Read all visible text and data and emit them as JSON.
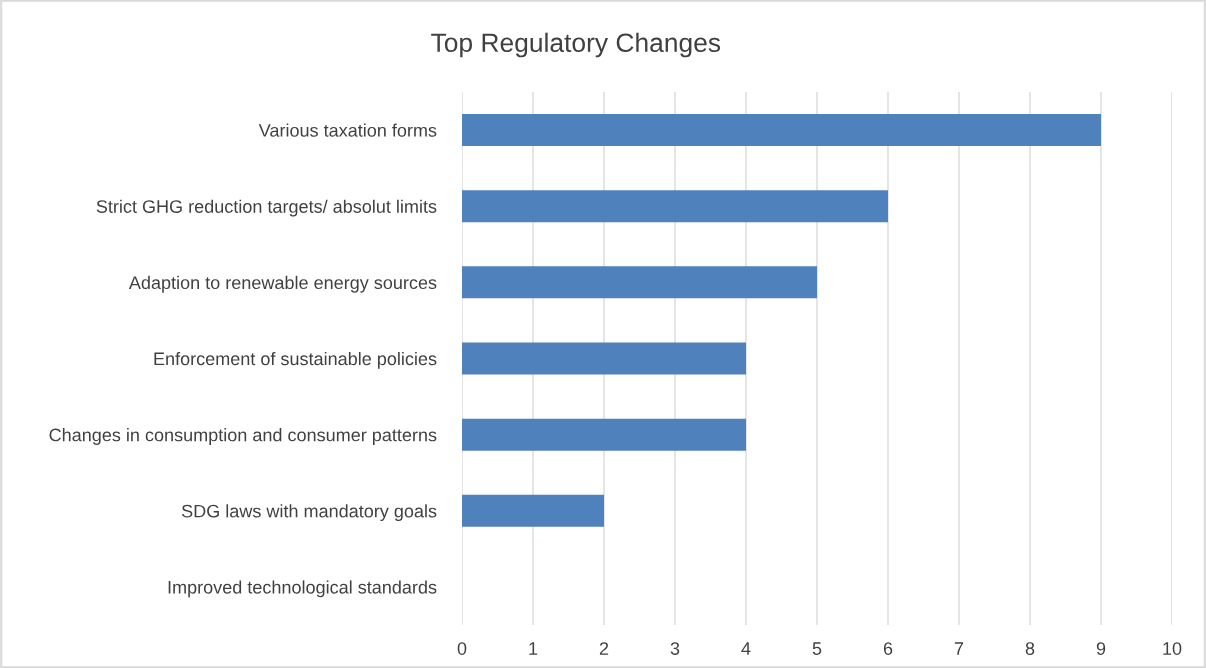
{
  "chart_data": {
    "type": "bar",
    "orientation": "horizontal",
    "title": "Top Regulatory Changes",
    "categories": [
      "Various taxation forms",
      "Strict GHG reduction targets/ absolut limits",
      "Adaption to renewable energy sources",
      "Enforcement of sustainable policies",
      "Changes in consumption and consumer patterns",
      "SDG laws with mandatory goals",
      "Improved technological standards"
    ],
    "values": [
      9,
      6,
      5,
      4,
      4,
      2,
      0
    ],
    "color": "#4f81bd",
    "xlim": [
      0,
      10
    ],
    "xticks": [
      0,
      1,
      2,
      3,
      4,
      5,
      6,
      7,
      8,
      9,
      10
    ],
    "grid": "x"
  }
}
